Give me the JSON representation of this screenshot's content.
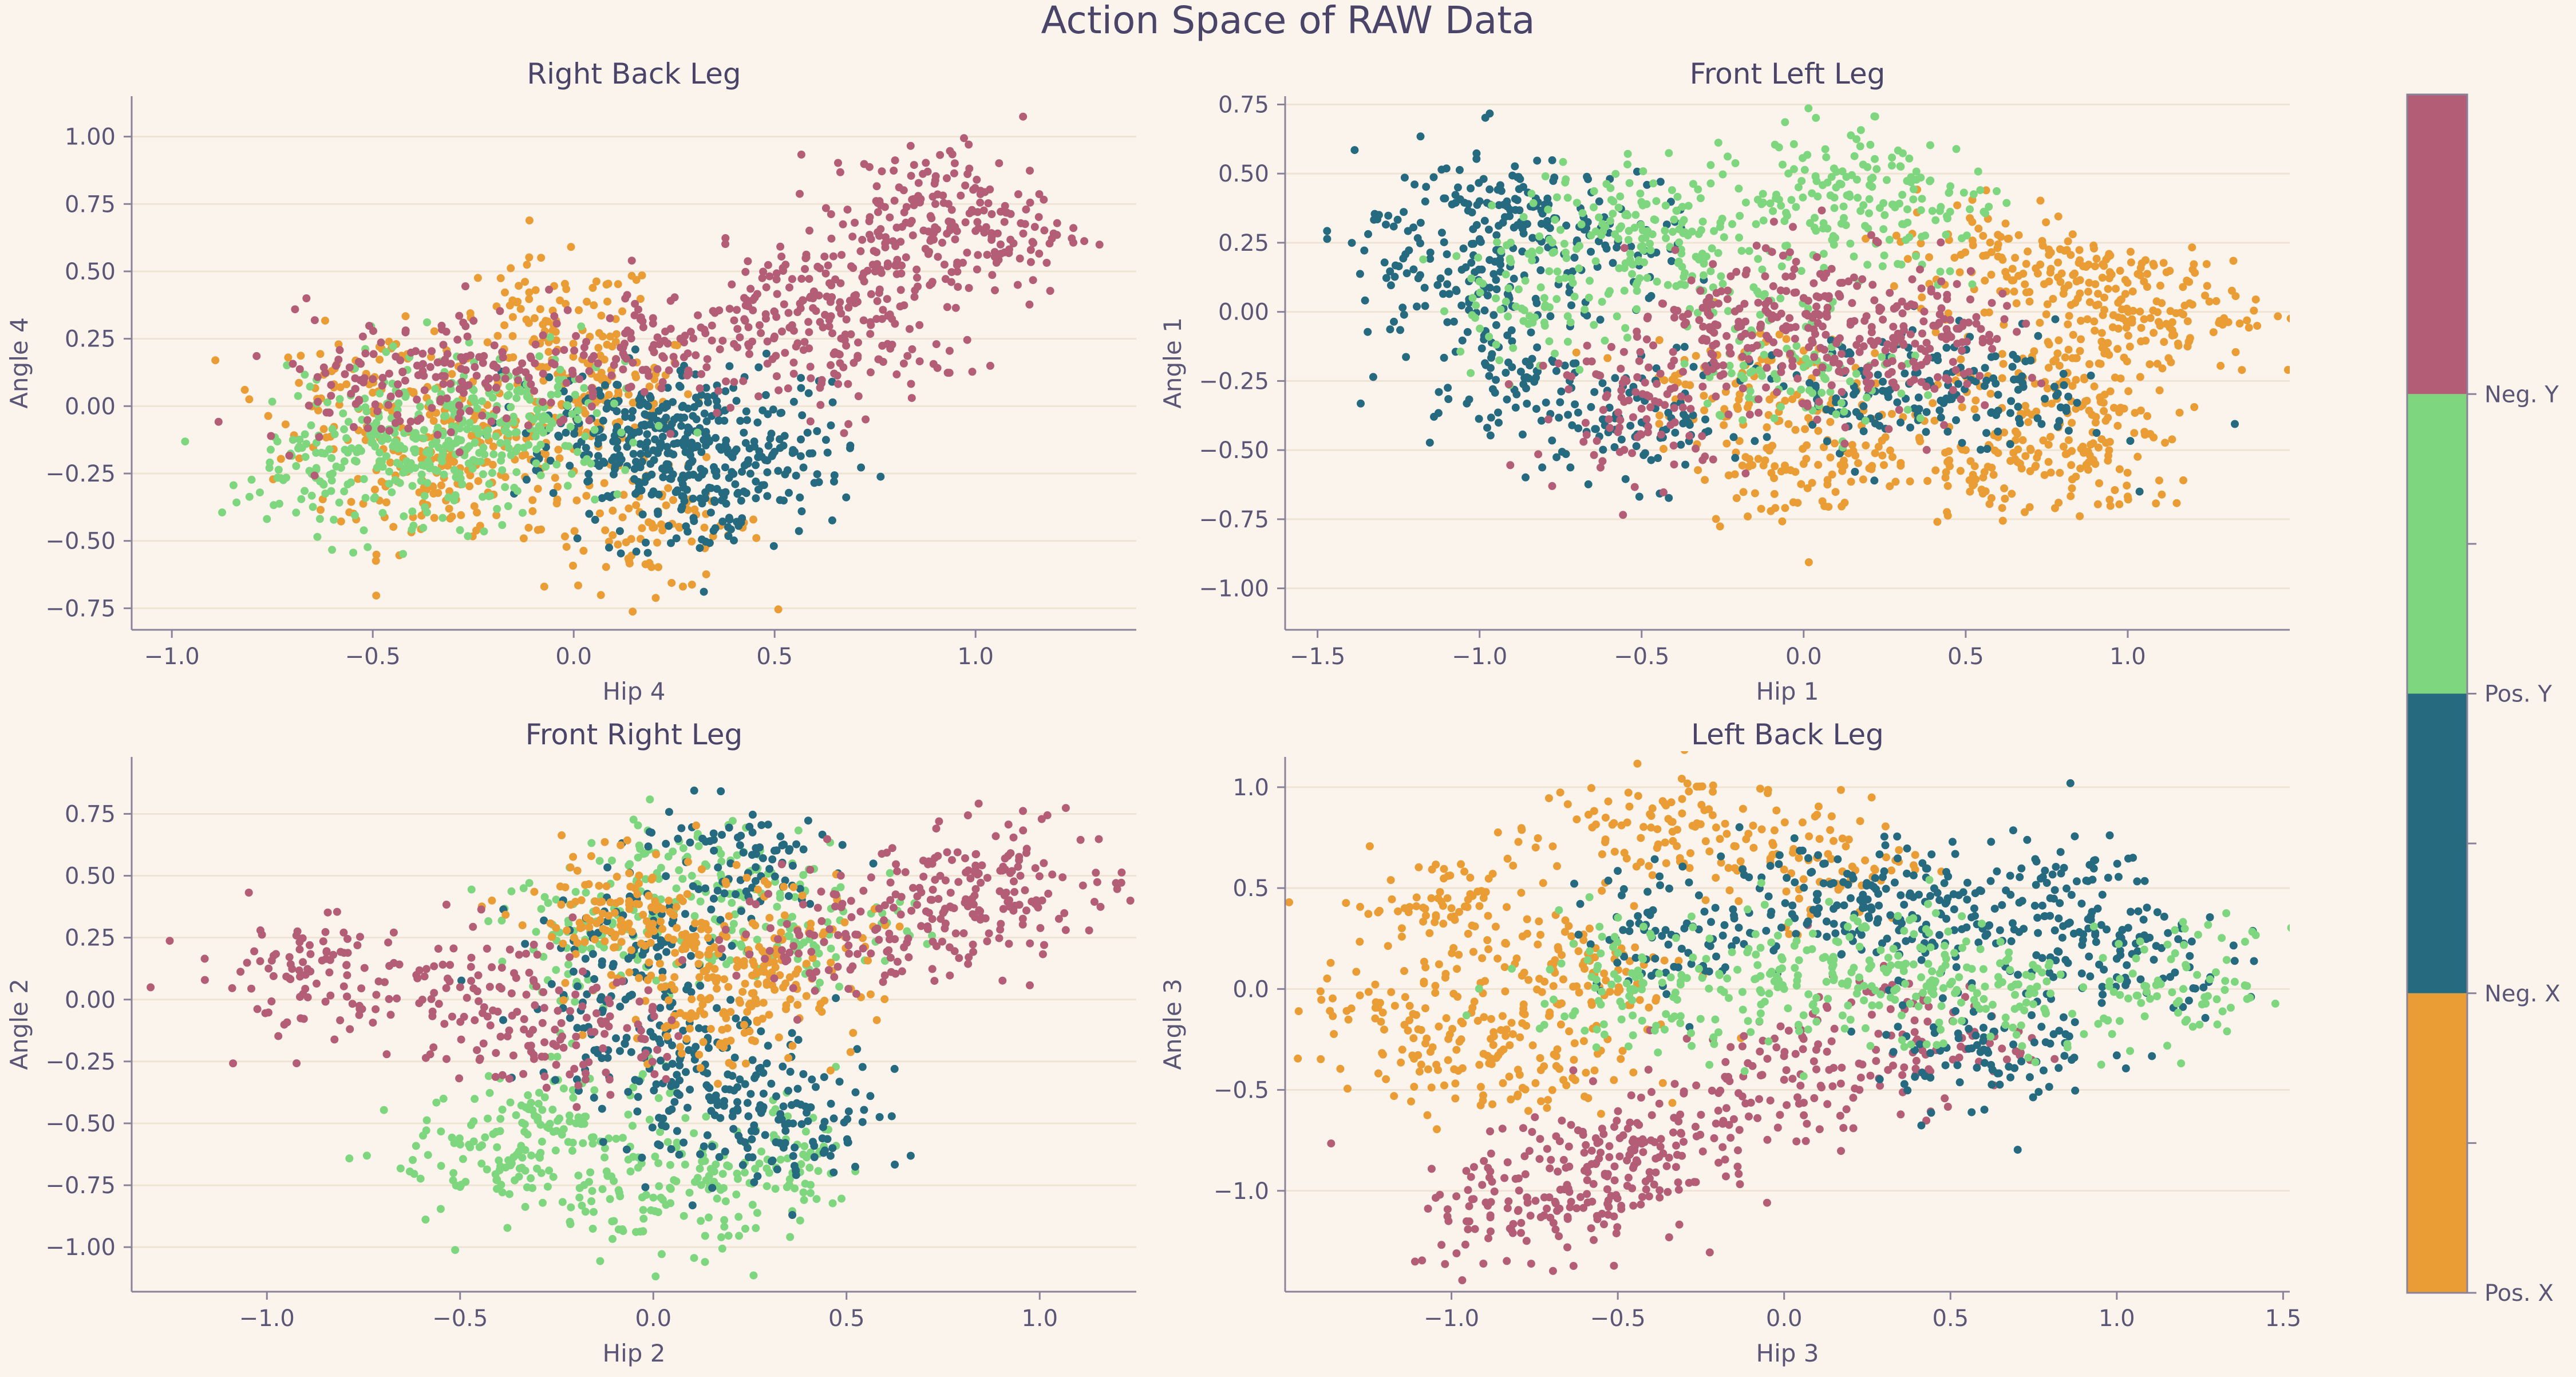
{
  "figure": {
    "title": "Action Space of RAW Data",
    "background": "#faf4ed",
    "text_color": "#5b5676",
    "title_color": "#4a4568",
    "axis_color": "#8a8299",
    "grid_color": "#efe3d3"
  },
  "colorbar": {
    "labels": [
      "Pos. X",
      "Neg. X",
      "Pos. Y",
      "Neg. Y"
    ],
    "colors": [
      "#e99d34",
      "#266a80",
      "#7ed67f",
      "#b35d77"
    ]
  },
  "chart_data": [
    {
      "type": "scatter",
      "title": "Right Back Leg",
      "xlabel": "Hip 4",
      "ylabel": "Angle 4",
      "xlim": [
        -1.1,
        1.4
      ],
      "ylim": [
        -0.83,
        1.15
      ],
      "xticks": [
        -1.0,
        -0.5,
        0.0,
        0.5,
        1.0
      ],
      "yticks": [
        -0.75,
        -0.5,
        -0.25,
        0.0,
        0.25,
        0.5,
        0.75,
        1.0
      ],
      "grid": "horizontal",
      "series": [
        {
          "class": "Pos. X",
          "color": "#e99d34",
          "points": [
            [
              -0.2,
              -0.15
            ],
            [
              0.05,
              0.05
            ],
            [
              -0.35,
              -0.3
            ],
            [
              0.2,
              -0.45
            ],
            [
              -0.05,
              0.3
            ],
            [
              -0.5,
              0.05
            ]
          ]
        },
        {
          "class": "Neg. X",
          "color": "#266a80",
          "points": [
            [
              0.2,
              -0.2
            ],
            [
              0.35,
              -0.35
            ],
            [
              0.05,
              -0.1
            ],
            [
              0.45,
              -0.15
            ],
            [
              0.25,
              -0.05
            ]
          ]
        },
        {
          "class": "Pos. Y",
          "color": "#7ed67f",
          "points": [
            [
              -0.45,
              -0.15
            ],
            [
              -0.25,
              -0.2
            ],
            [
              -0.6,
              -0.25
            ],
            [
              -0.1,
              -0.05
            ],
            [
              -0.3,
              0.0
            ]
          ]
        },
        {
          "class": "Neg. Y",
          "color": "#b35d77",
          "points": [
            [
              0.75,
              0.5
            ],
            [
              0.5,
              0.35
            ],
            [
              1.0,
              0.65
            ],
            [
              0.2,
              0.2
            ],
            [
              -0.2,
              0.15
            ],
            [
              -0.5,
              0.1
            ],
            [
              0.9,
              0.75
            ],
            [
              0.65,
              0.2
            ]
          ]
        }
      ]
    },
    {
      "type": "scatter",
      "title": "Front Left Leg",
      "xlabel": "Hip 1",
      "ylabel": "Angle 1",
      "xlim": [
        -1.6,
        1.5
      ],
      "ylim": [
        -1.15,
        0.78
      ],
      "xticks": [
        -1.5,
        -1.0,
        -0.5,
        0.0,
        0.5,
        1.0
      ],
      "yticks": [
        -1.0,
        -0.75,
        -0.5,
        -0.25,
        0.0,
        0.25,
        0.5,
        0.75
      ],
      "grid": "horizontal",
      "series": [
        {
          "class": "Pos. X",
          "color": "#e99d34",
          "points": [
            [
              0.9,
              0.1
            ],
            [
              0.8,
              -0.25
            ],
            [
              0.5,
              -0.5
            ],
            [
              0.0,
              -0.55
            ],
            [
              -0.2,
              -0.25
            ],
            [
              0.6,
              0.2
            ],
            [
              1.1,
              -0.05
            ],
            [
              0.9,
              -0.55
            ]
          ]
        },
        {
          "class": "Neg. X",
          "color": "#266a80",
          "points": [
            [
              -1.1,
              0.1
            ],
            [
              -0.9,
              -0.2
            ],
            [
              -0.5,
              -0.4
            ],
            [
              0.2,
              -0.3
            ],
            [
              0.6,
              -0.3
            ],
            [
              -1.0,
              0.4
            ],
            [
              -0.7,
              0.25
            ]
          ]
        },
        {
          "class": "Pos. Y",
          "color": "#7ed67f",
          "points": [
            [
              0.1,
              0.45
            ],
            [
              -0.3,
              0.2
            ],
            [
              -0.8,
              0.05
            ],
            [
              0.0,
              -0.2
            ],
            [
              -0.55,
              0.35
            ],
            [
              0.25,
              0.35
            ]
          ]
        },
        {
          "class": "Neg. Y",
          "color": "#b35d77",
          "points": [
            [
              -0.3,
              -0.1
            ],
            [
              0.2,
              -0.2
            ],
            [
              -0.5,
              -0.35
            ],
            [
              0.4,
              -0.05
            ],
            [
              0.0,
              0.05
            ]
          ]
        }
      ]
    },
    {
      "type": "scatter",
      "title": "Front Right Leg",
      "xlabel": "Hip 2",
      "ylabel": "Angle 2",
      "xlim": [
        -1.35,
        1.25
      ],
      "ylim": [
        -1.18,
        0.98
      ],
      "xticks": [
        -1.0,
        -0.5,
        0.0,
        0.5,
        1.0
      ],
      "yticks": [
        -1.0,
        -0.75,
        -0.5,
        -0.25,
        0.0,
        0.25,
        0.5,
        0.75
      ],
      "grid": "horizontal",
      "series": [
        {
          "class": "Pos. Y",
          "color": "#7ed67f",
          "points": [
            [
              -0.4,
              -0.65
            ],
            [
              0.0,
              -0.8
            ],
            [
              -0.2,
              -0.5
            ],
            [
              0.3,
              -0.7
            ],
            [
              0.1,
              0.5
            ],
            [
              -0.15,
              0.25
            ],
            [
              0.4,
              0.3
            ]
          ]
        },
        {
          "class": "Neg. X",
          "color": "#266a80",
          "points": [
            [
              0.15,
              -0.45
            ],
            [
              -0.05,
              0.2
            ],
            [
              0.35,
              -0.5
            ],
            [
              0.0,
              -0.15
            ],
            [
              0.2,
              0.55
            ]
          ]
        },
        {
          "class": "Pos. X",
          "color": "#e99d34",
          "points": [
            [
              0.1,
              0.25
            ],
            [
              0.3,
              0.15
            ],
            [
              -0.1,
              0.35
            ],
            [
              0.2,
              -0.05
            ]
          ]
        },
        {
          "class": "Neg. Y",
          "color": "#b35d77",
          "points": [
            [
              -0.9,
              0.1
            ],
            [
              0.75,
              0.35
            ],
            [
              -0.5,
              0.05
            ],
            [
              0.5,
              0.25
            ],
            [
              -0.2,
              -0.15
            ],
            [
              0.95,
              0.5
            ]
          ]
        }
      ]
    },
    {
      "type": "scatter",
      "title": "Left Back Leg",
      "xlabel": "Hip 3",
      "ylabel": "Angle 3",
      "xlim": [
        -1.5,
        1.52
      ],
      "ylim": [
        -1.5,
        1.15
      ],
      "xticks": [
        -1.0,
        -0.5,
        0.0,
        0.5,
        1.0,
        1.5
      ],
      "yticks": [
        -1.0,
        -0.5,
        0.0,
        0.5,
        1.0
      ],
      "grid": "horizontal",
      "series": [
        {
          "class": "Pos. X",
          "color": "#e99d34",
          "points": [
            [
              -1.0,
              0.4
            ],
            [
              -1.1,
              -0.2
            ],
            [
              -0.4,
              0.8
            ],
            [
              -0.8,
              -0.4
            ],
            [
              0.1,
              0.65
            ],
            [
              -0.6,
              0.1
            ]
          ]
        },
        {
          "class": "Neg. Y",
          "color": "#b35d77",
          "points": [
            [
              -0.8,
              -1.1
            ],
            [
              -0.4,
              -0.75
            ],
            [
              0.0,
              -0.45
            ],
            [
              0.4,
              -0.25
            ],
            [
              -0.6,
              -0.9
            ]
          ]
        },
        {
          "class": "Neg. X",
          "color": "#266a80",
          "points": [
            [
              0.8,
              0.45
            ],
            [
              0.4,
              0.35
            ],
            [
              -0.3,
              0.3
            ],
            [
              1.0,
              0.15
            ],
            [
              0.6,
              -0.3
            ],
            [
              0.2,
              0.45
            ]
          ]
        },
        {
          "class": "Pos. Y",
          "color": "#7ed67f",
          "points": [
            [
              0.0,
              0.0
            ],
            [
              0.6,
              -0.05
            ],
            [
              -0.5,
              0.05
            ],
            [
              1.2,
              0.0
            ],
            [
              0.3,
              0.1
            ]
          ]
        }
      ]
    }
  ]
}
